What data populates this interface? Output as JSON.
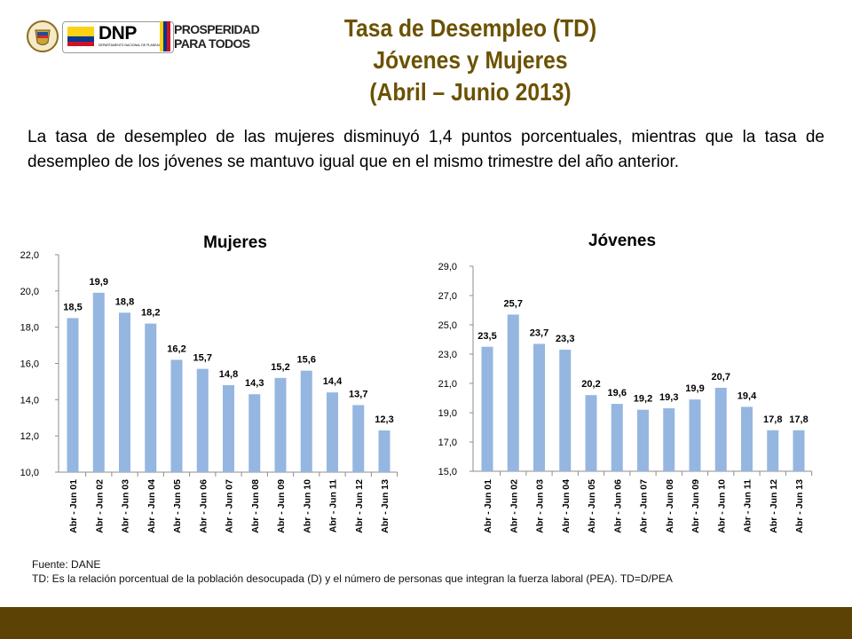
{
  "header": {
    "logo_dnp_text": "DNP",
    "logo_dnp_subtext": "DEPARTAMENTO NACIONAL DE PLANEACIÓN",
    "logo_prosperidad_line1": "PROSPERIDAD",
    "logo_prosperidad_line2": "PARA TODOS",
    "title_line1": "Tasa de Desempleo (TD)",
    "title_line2": "Jóvenes y Mujeres",
    "title_line3": "(Abril – Junio 2013)"
  },
  "summary": "La tasa de desempleo de las mujeres disminuyó 1,4 puntos porcentuales, mientras que la tasa de desempleo de los jóvenes se mantuvo igual que en el mismo trimestre del año anterior.",
  "colors": {
    "bar": "#95b6e0",
    "title": "#6b5200",
    "footer_bar": "#5c4305"
  },
  "chart_data": [
    {
      "type": "bar",
      "title": "Mujeres",
      "categories": [
        "Abr - Jun 01",
        "Abr - Jun 02",
        "Abr - Jun 03",
        "Abr - Jun 04",
        "Abr - Jun 05",
        "Abr - Jun 06",
        "Abr - Jun 07",
        "Abr - Jun 08",
        "Abr - Jun 09",
        "Abr - Jun 10",
        "Abr - Jun 11",
        "Abr - Jun 12",
        "Abr - Jun 13"
      ],
      "values": [
        18.5,
        19.9,
        18.8,
        18.2,
        16.2,
        15.7,
        14.8,
        14.3,
        15.2,
        15.6,
        14.4,
        13.7,
        12.3
      ],
      "value_labels": [
        "18,5",
        "19,9",
        "18,8",
        "18,2",
        "16,2",
        "15,7",
        "14,8",
        "14,3",
        "15,2",
        "15,6",
        "14,4",
        "13,7",
        "12,3"
      ],
      "yticks": [
        "10,0",
        "12,0",
        "14,0",
        "16,0",
        "18,0",
        "20,0",
        "22,0"
      ],
      "ylim": [
        10,
        22
      ],
      "grid": false
    },
    {
      "type": "bar",
      "title": "Jóvenes",
      "categories": [
        "Abr - Jun 01",
        "Abr - Jun 02",
        "Abr - Jun 03",
        "Abr - Jun 04",
        "Abr - Jun 05",
        "Abr - Jun 06",
        "Abr - Jun 07",
        "Abr - Jun 08",
        "Abr - Jun 09",
        "Abr - Jun 10",
        "Abr - Jun 11",
        "Abr - Jun 12",
        "Abr - Jun 13"
      ],
      "values": [
        23.5,
        25.7,
        23.7,
        23.3,
        20.2,
        19.6,
        19.2,
        19.3,
        19.9,
        20.7,
        19.4,
        17.8,
        17.8
      ],
      "value_labels": [
        "23,5",
        "25,7",
        "23,7",
        "23,3",
        "20,2",
        "19,6",
        "19,2",
        "19,3",
        "19,9",
        "20,7",
        "19,4",
        "17,8",
        "17,8"
      ],
      "yticks": [
        "15,0",
        "17,0",
        "19,0",
        "21,0",
        "23,0",
        "25,0",
        "27,0",
        "29,0"
      ],
      "ylim": [
        15,
        29
      ],
      "grid": false
    }
  ],
  "footnotes": {
    "source": "Fuente: DANE",
    "definition": "TD:  Es la relación porcentual de la población desocupada (D) y el número de personas que integran la fuerza laboral (PEA). TD=D/PEA"
  }
}
